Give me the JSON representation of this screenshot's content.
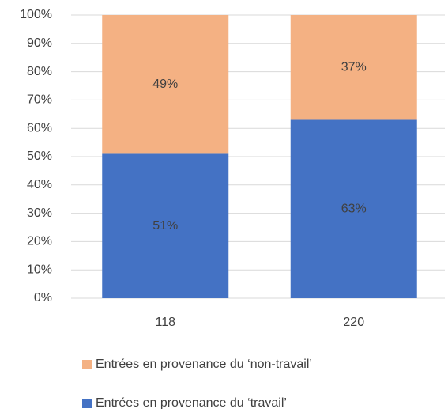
{
  "chart_data": {
    "type": "stacked_bar",
    "categories": [
      "118",
      "220"
    ],
    "series": [
      {
        "name": "Entrées en provenance du ‘travail’",
        "color": "#4472c4",
        "values": [
          51,
          63
        ],
        "value_labels": [
          "51%",
          "63%"
        ]
      },
      {
        "name": "Entrées en provenance du ‘non-travail’",
        "color": "#f4b183",
        "values": [
          49,
          37
        ],
        "value_labels": [
          "49%",
          "37%"
        ]
      }
    ],
    "ylim": [
      0,
      100
    ],
    "yticks": [
      {
        "value": 0,
        "label": "0%"
      },
      {
        "value": 10,
        "label": "10%"
      },
      {
        "value": 20,
        "label": "20%"
      },
      {
        "value": 30,
        "label": "30%"
      },
      {
        "value": 40,
        "label": "40%"
      },
      {
        "value": 50,
        "label": "50%"
      },
      {
        "value": 60,
        "label": "60%"
      },
      {
        "value": 70,
        "label": "70%"
      },
      {
        "value": 80,
        "label": "80%"
      },
      {
        "value": 90,
        "label": "90%"
      },
      {
        "value": 100,
        "label": "100%"
      }
    ],
    "grid": true,
    "legend": "bottom"
  }
}
